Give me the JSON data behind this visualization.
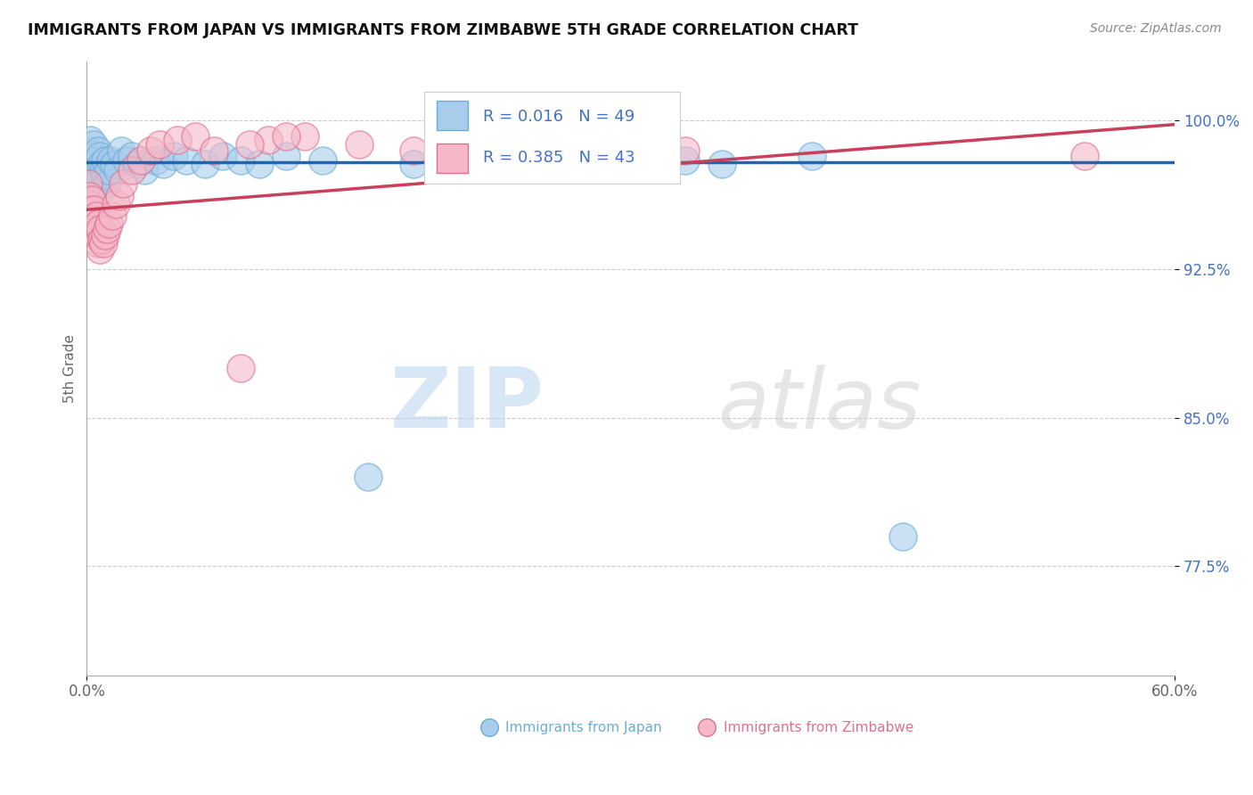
{
  "title": "IMMIGRANTS FROM JAPAN VS IMMIGRANTS FROM ZIMBABWE 5TH GRADE CORRELATION CHART",
  "source": "Source: ZipAtlas.com",
  "ylabel": "5th Grade",
  "xlim": [
    0.0,
    0.6
  ],
  "ylim": [
    0.72,
    1.03
  ],
  "xtick_vals": [
    0.0,
    0.6
  ],
  "xtick_labels": [
    "0.0%",
    "60.0%"
  ],
  "ytick_vals": [
    0.775,
    0.85,
    0.925,
    1.0
  ],
  "ytick_labels": [
    "77.5%",
    "85.0%",
    "92.5%",
    "100.0%"
  ],
  "japan_color": "#a8ccec",
  "japan_edge_color": "#6baed6",
  "zimbabwe_color": "#f4b8c8",
  "zimbabwe_edge_color": "#e07090",
  "japan_line_color": "#2166ac",
  "zimbabwe_line_color": "#c8405a",
  "R_japan": 0.016,
  "N_japan": 49,
  "R_zimbabwe": 0.385,
  "N_zimbabwe": 43,
  "watermark_zip": "ZIP",
  "watermark_atlas": "atlas",
  "background_color": "#ffffff",
  "legend_text_color": "#4472c4",
  "japan_scatter_x": [
    0.001,
    0.002,
    0.002,
    0.003,
    0.003,
    0.004,
    0.004,
    0.005,
    0.005,
    0.006,
    0.006,
    0.007,
    0.007,
    0.008,
    0.008,
    0.009,
    0.01,
    0.01,
    0.011,
    0.012,
    0.013,
    0.015,
    0.017,
    0.019,
    0.022,
    0.025,
    0.028,
    0.032,
    0.038,
    0.042,
    0.048,
    0.055,
    0.065,
    0.075,
    0.085,
    0.095,
    0.11,
    0.13,
    0.155,
    0.18,
    0.2,
    0.22,
    0.25,
    0.275,
    0.3,
    0.33,
    0.35,
    0.4,
    0.45
  ],
  "japan_scatter_y": [
    0.985,
    0.99,
    0.978,
    0.982,
    0.975,
    0.988,
    0.972,
    0.98,
    0.968,
    0.985,
    0.975,
    0.982,
    0.97,
    0.978,
    0.965,
    0.975,
    0.98,
    0.972,
    0.968,
    0.975,
    0.98,
    0.978,
    0.975,
    0.985,
    0.98,
    0.982,
    0.978,
    0.975,
    0.98,
    0.978,
    0.982,
    0.98,
    0.978,
    0.982,
    0.98,
    0.978,
    0.982,
    0.98,
    0.82,
    0.978,
    0.982,
    0.978,
    0.98,
    0.978,
    0.982,
    0.98,
    0.978,
    0.982,
    0.79
  ],
  "zimbabwe_scatter_x": [
    0.001,
    0.001,
    0.002,
    0.002,
    0.003,
    0.003,
    0.004,
    0.004,
    0.005,
    0.005,
    0.006,
    0.006,
    0.007,
    0.007,
    0.008,
    0.009,
    0.01,
    0.011,
    0.012,
    0.014,
    0.016,
    0.018,
    0.02,
    0.025,
    0.03,
    0.035,
    0.04,
    0.05,
    0.06,
    0.07,
    0.085,
    0.1,
    0.12,
    0.15,
    0.18,
    0.21,
    0.24,
    0.27,
    0.3,
    0.33,
    0.09,
    0.11,
    0.55
  ],
  "zimbabwe_scatter_y": [
    0.968,
    0.958,
    0.962,
    0.955,
    0.96,
    0.95,
    0.955,
    0.945,
    0.952,
    0.942,
    0.948,
    0.938,
    0.945,
    0.935,
    0.94,
    0.938,
    0.942,
    0.945,
    0.948,
    0.952,
    0.958,
    0.962,
    0.968,
    0.975,
    0.98,
    0.985,
    0.988,
    0.99,
    0.992,
    0.985,
    0.875,
    0.99,
    0.992,
    0.988,
    0.985,
    0.988,
    0.99,
    0.992,
    0.988,
    0.985,
    0.988,
    0.992,
    0.982
  ]
}
